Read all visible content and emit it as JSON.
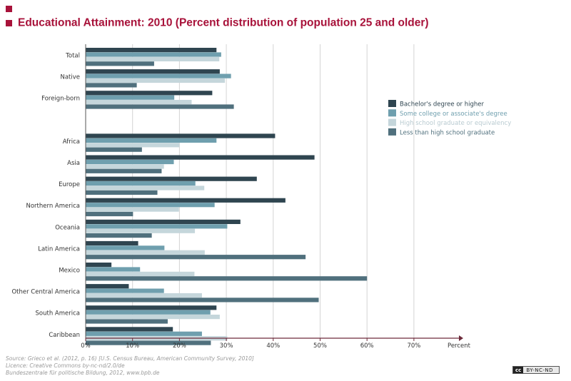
{
  "title": "Educational Attainment: 2010 (Percent distribution of population 25 and older)",
  "colors": {
    "bachelor": "#2f4550",
    "some_college": "#6f9fae",
    "high_school": "#c5d6db",
    "less_than_hs": "#50707d",
    "title": "#a8123a",
    "axis": "#6d2a3a",
    "grid": "#d4d4d4"
  },
  "chart_data": {
    "type": "bar",
    "orientation": "horizontal",
    "title": "Educational Attainment: 2010 (Percent distribution of population 25 and older)",
    "xlabel": "Percent",
    "ylabel": "",
    "xlim": [
      0,
      80
    ],
    "xticks": [
      "0%",
      "10%",
      "20%",
      "30%",
      "40%",
      "50%",
      "60%",
      "70%"
    ],
    "xtick_values": [
      0,
      10,
      20,
      30,
      40,
      50,
      60,
      70
    ],
    "grid": true,
    "legend_position": "right",
    "categories": [
      "Total",
      "Native",
      "Foreign-born",
      "",
      "Africa",
      "Asia",
      "Europe",
      "Northern America",
      "Oceania",
      "Latin America",
      "Mexico",
      "Other Central America",
      "South America",
      "Caribbean"
    ],
    "series": [
      {
        "name": "Bachelor's degree or higher",
        "color": "#2f4550",
        "values": [
          27.9,
          28.6,
          27.0,
          null,
          40.4,
          48.8,
          36.5,
          42.6,
          33.0,
          11.2,
          5.5,
          9.2,
          27.9,
          18.6
        ]
      },
      {
        "name": "Some college or associate's degree",
        "color": "#6f9fae",
        "values": [
          28.9,
          31.0,
          18.9,
          null,
          27.9,
          18.8,
          23.4,
          27.5,
          30.2,
          16.8,
          11.6,
          16.7,
          26.6,
          24.8
        ]
      },
      {
        "name": "High school graduate or equivalency",
        "color": "#c5d6db",
        "values": [
          28.5,
          29.7,
          22.6,
          null,
          20.0,
          16.7,
          25.3,
          19.9,
          23.3,
          25.4,
          23.2,
          24.8,
          28.6,
          30.2
        ]
      },
      {
        "name": "Less than high school graduate",
        "color": "#50707d",
        "values": [
          14.6,
          10.9,
          31.6,
          null,
          12.0,
          16.2,
          15.3,
          10.1,
          14.1,
          46.9,
          60.0,
          49.7,
          17.5,
          26.7
        ]
      }
    ]
  },
  "source_lines": [
    "Source: Grieco et al. (2012, p. 16) [U.S. Census Bureau, American Community Survey, 2010]",
    "Licence: Creative Commons by-nc-nd/2.0/de",
    "Bundeszentrale für politische Bildung, 2012, www.bpb.de"
  ],
  "license_badge": {
    "cc": "cc",
    "text": "BY-NC-ND"
  }
}
